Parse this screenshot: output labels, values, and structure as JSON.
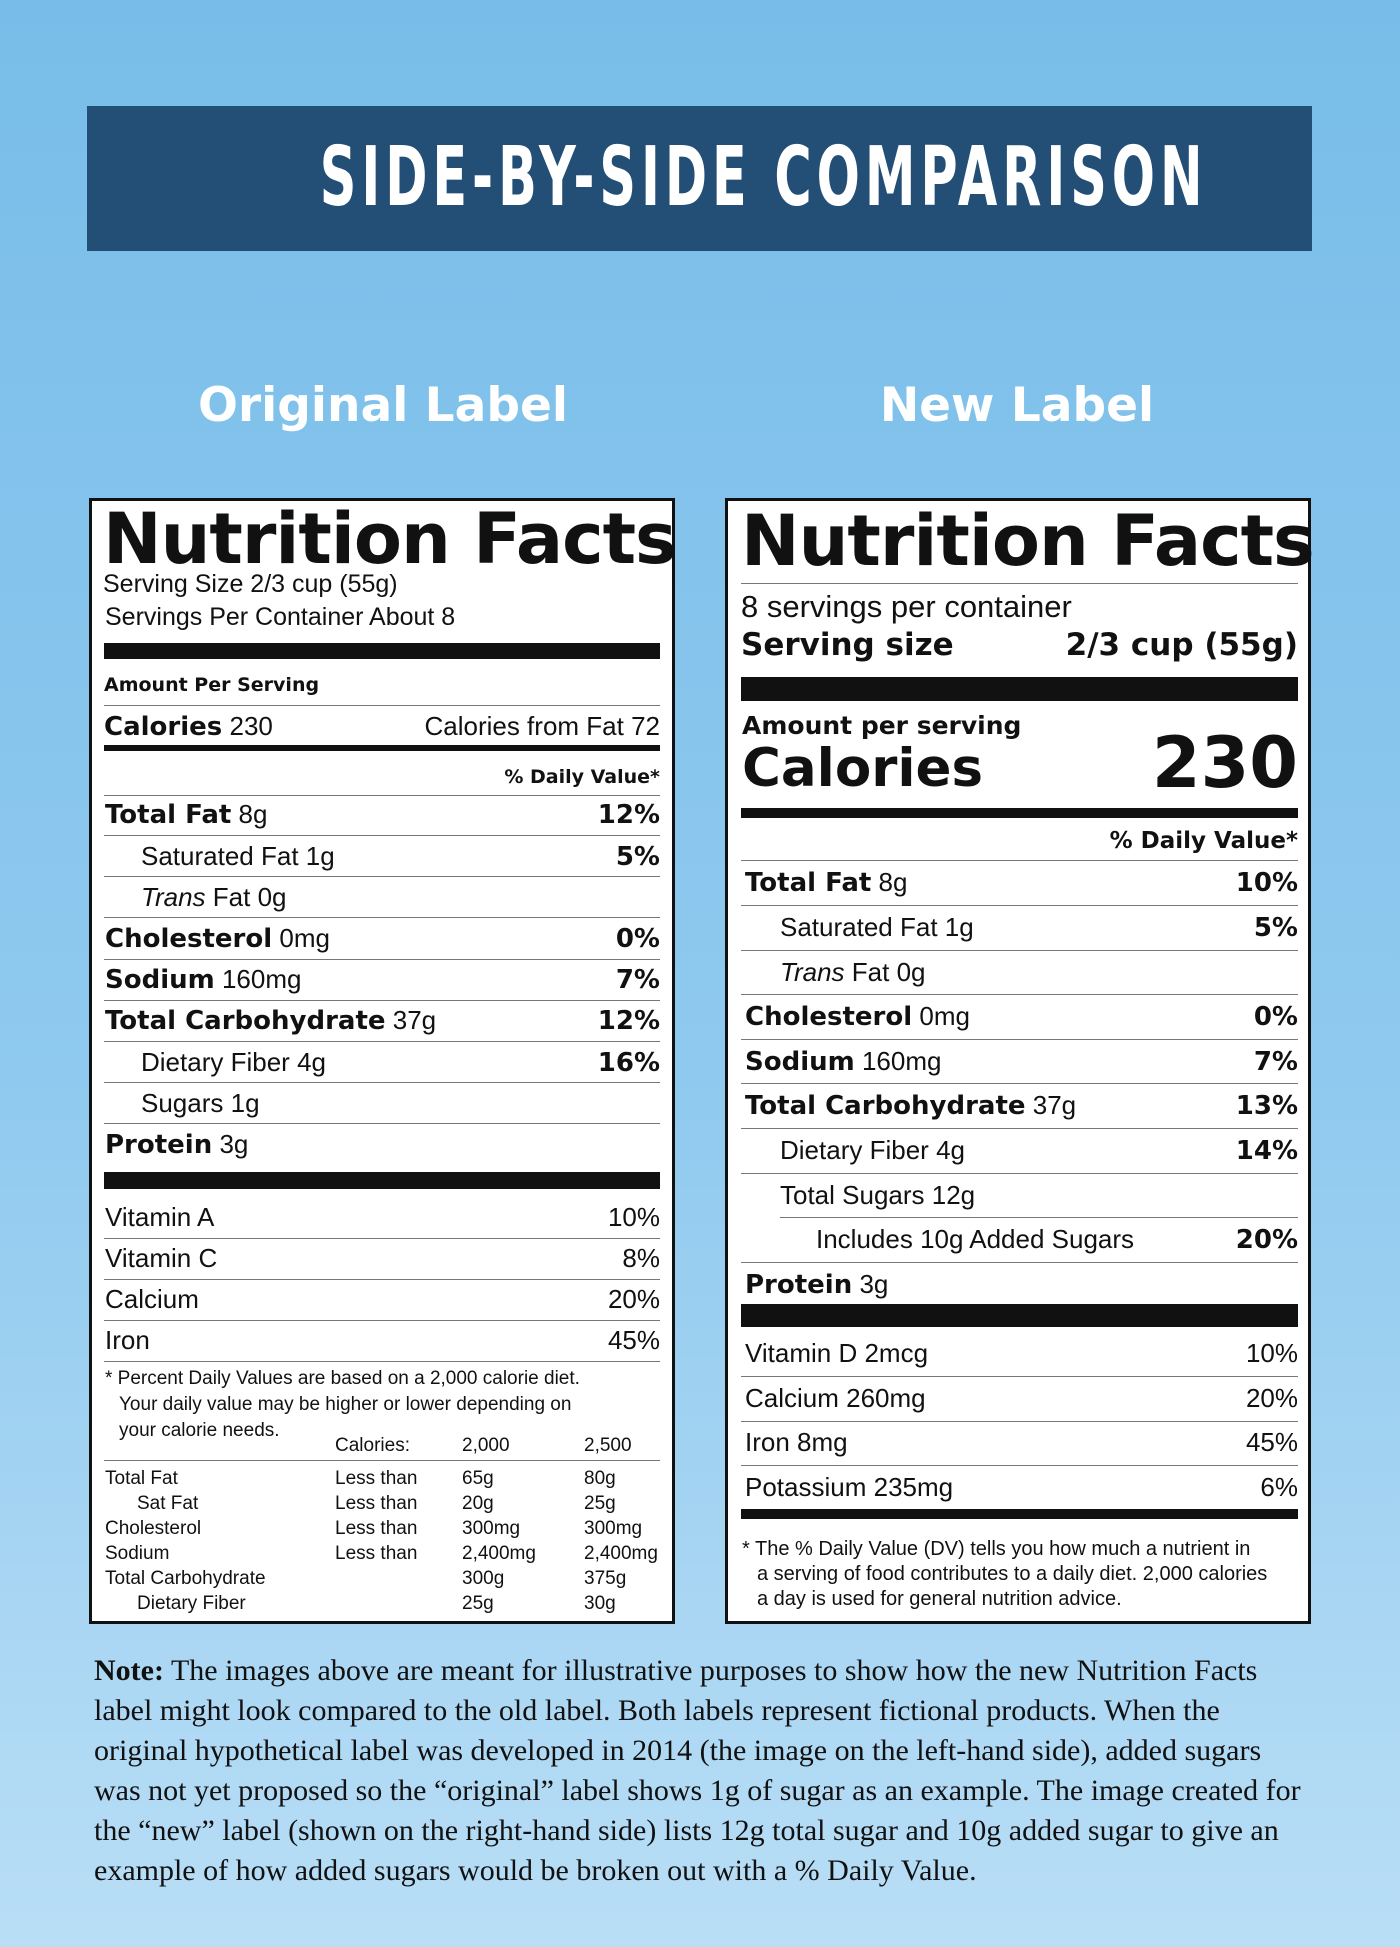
{
  "header": {
    "title": "SIDE-BY-SIDE COMPARISON"
  },
  "original_label": {
    "heading": "Original Label",
    "title": "Nutrition Facts",
    "serving_size": "Serving Size 2/3 cup (55g)",
    "servings_per_container": "Servings Per Container About 8",
    "amount_per_serving": "Amount Per Serving",
    "calories_label": "Calories",
    "calories_value": "230",
    "calories_from_fat": "Calories from Fat 72",
    "daily_value_header": "% Daily Value*",
    "nutrients": [
      {
        "name": "Total Fat",
        "amount": "8g",
        "dv": "12%"
      },
      {
        "name": "Saturated Fat",
        "amount": "1g",
        "dv": "5%"
      },
      {
        "name_italic": "Trans",
        "name": "Fat",
        "amount": "0g"
      },
      {
        "name": "Cholesterol",
        "amount": "0mg",
        "dv": "0%"
      },
      {
        "name": "Sodium",
        "amount": "160mg",
        "dv": "7%"
      },
      {
        "name": "Total Carbohydrate",
        "amount": "37g",
        "dv": "12%"
      },
      {
        "name": "Dietary Fiber",
        "amount": "4g",
        "dv": "16%"
      },
      {
        "name": "Sugars",
        "amount": "1g"
      },
      {
        "name": "Protein",
        "amount": "3g"
      }
    ],
    "vitamins": [
      {
        "name": "Vitamin A",
        "dv": "10%"
      },
      {
        "name": "Vitamin C",
        "dv": "8%"
      },
      {
        "name": "Calcium",
        "dv": "20%"
      },
      {
        "name": "Iron",
        "dv": "45%"
      }
    ],
    "footnote": [
      "* Percent Daily Values are based on a 2,000 calorie diet.",
      "Your daily value may be higher or lower depending on",
      "your calorie needs."
    ],
    "daily_values_table": {
      "header": [
        "Calories:",
        "2,000",
        "2,500"
      ],
      "rows": [
        [
          "Total Fat",
          "Less than",
          "65g",
          "80g"
        ],
        [
          "Sat Fat",
          "Less than",
          "20g",
          "25g"
        ],
        [
          "Cholesterol",
          "Less than",
          "300mg",
          "300mg"
        ],
        [
          "Sodium",
          "Less than",
          "2,400mg",
          "2,400mg"
        ],
        [
          "Total Carbohydrate",
          null,
          "300g",
          "375g"
        ],
        [
          "Dietary Fiber",
          null,
          "25g",
          "30g"
        ]
      ]
    }
  },
  "new_label": {
    "heading": "New Label",
    "title": "Nutrition Facts",
    "servings_per_container": "8 servings per container",
    "serving_size_label": "Serving size",
    "serving_size_value": "2/3 cup (55g)",
    "amount_per_serving": "Amount per serving",
    "calories_label": "Calories",
    "calories_value": "230",
    "daily_value_header": "% Daily Value*",
    "nutrients": [
      {
        "name": "Total Fat",
        "amount": "8g",
        "dv": "10%"
      },
      {
        "name": "Saturated Fat",
        "amount": "1g",
        "dv": "5%"
      },
      {
        "name_italic": "Trans",
        "name": "Fat",
        "amount": "0g"
      },
      {
        "name": "Cholesterol",
        "amount": "0mg",
        "dv": "0%"
      },
      {
        "name": "Sodium",
        "amount": "160mg",
        "dv": "7%"
      },
      {
        "name": "Total Carbohydrate",
        "amount": "37g",
        "dv": "13%"
      },
      {
        "name": "Dietary Fiber",
        "amount": "4g",
        "dv": "14%"
      },
      {
        "name": "Total Sugars",
        "amount": "12g"
      },
      {
        "name": "Includes 10g Added Sugars",
        "dv": "20%"
      },
      {
        "name": "Protein",
        "amount": "3g"
      }
    ],
    "vitamins": [
      {
        "name": "Vitamin D 2mcg",
        "dv": "10%"
      },
      {
        "name": "Calcium 260mg",
        "dv": "20%"
      },
      {
        "name": "Iron 8mg",
        "dv": "45%"
      },
      {
        "name": "Potassium 235mg",
        "dv": "6%"
      }
    ],
    "footnote": [
      "* The % Daily Value (DV) tells you how much a nutrient in",
      "a serving of food contributes to a daily diet. 2,000 calories",
      "a day is used for general nutrition advice."
    ]
  },
  "note": {
    "label": "Note:",
    "text": "The images above are meant for illustrative purposes to show how the new Nutrition Facts label might look compared to the old label. Both labels represent fictional products. When the original hypothetical label was developed in 2014 (the image on the left-hand side), added sugars was not yet proposed so the “original” label shows 1g of sugar as an example. The image created for the “new” label (shown on the right-hand side) lists 12g total sugar and 10g added sugar to give an example of how added sugars would be broken out with a % Daily Value."
  }
}
